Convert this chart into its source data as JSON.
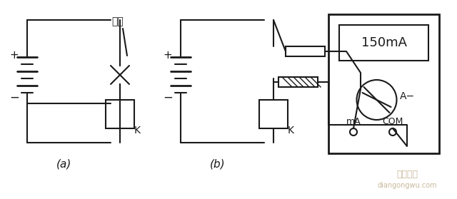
{
  "background_color": "#ffffff",
  "fig_width": 6.4,
  "fig_height": 2.79,
  "dpi": 100,
  "label_a": "(a)",
  "label_b": "(b)",
  "label_duankai": "断开",
  "label_K_a": "K",
  "label_K_b": "K",
  "label_150mA": "150mA",
  "label_mA": "mA",
  "label_COM": "COM",
  "label_Aminus": "A−",
  "watermark_1": "电工之屋",
  "watermark_2": "diangongwu.com",
  "line_color": "#1a1a1a",
  "watermark_color": "#c8b89a"
}
